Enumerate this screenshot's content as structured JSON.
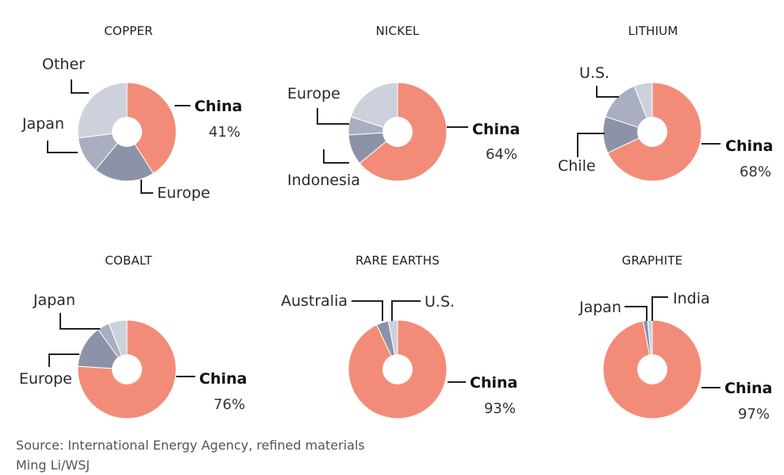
{
  "colors": {
    "china": "#F28C78",
    "shade1": "#8C93A8",
    "shade2": "#A9AFC1",
    "shade3": "#CDD1DC",
    "hole": "#FFFFFF"
  },
  "chart_data": [
    {
      "type": "pie",
      "title": "COPPER",
      "slices": [
        {
          "label": "China",
          "value": 41,
          "value_label": "41%",
          "shade": "china"
        },
        {
          "label": "Europe",
          "value": 20,
          "shade": "shade1"
        },
        {
          "label": "Japan",
          "value": 12,
          "shade": "shade2"
        },
        {
          "label": "Other",
          "value": 27,
          "shade": "shade3"
        }
      ]
    },
    {
      "type": "pie",
      "title": "NICKEL",
      "slices": [
        {
          "label": "China",
          "value": 64,
          "value_label": "64%",
          "shade": "china"
        },
        {
          "label": "Indonesia",
          "value": 10,
          "shade": "shade1"
        },
        {
          "label": "Europe",
          "value": 6,
          "shade": "shade2"
        },
        {
          "label": "",
          "value": 20,
          "shade": "shade3"
        }
      ]
    },
    {
      "type": "pie",
      "title": "LITHIUM",
      "slices": [
        {
          "label": "China",
          "value": 68,
          "value_label": "68%",
          "shade": "china"
        },
        {
          "label": "Chile",
          "value": 12,
          "shade": "shade1"
        },
        {
          "label": "U.S.",
          "value": 14,
          "shade": "shade2"
        },
        {
          "label": "",
          "value": 6,
          "shade": "shade3"
        }
      ]
    },
    {
      "type": "pie",
      "title": "COBALT",
      "slices": [
        {
          "label": "China",
          "value": 76,
          "value_label": "76%",
          "shade": "china"
        },
        {
          "label": "Europe",
          "value": 14,
          "shade": "shade1"
        },
        {
          "label": "Japan",
          "value": 4,
          "shade": "shade2"
        },
        {
          "label": "",
          "value": 6,
          "shade": "shade3"
        }
      ]
    },
    {
      "type": "pie",
      "title": "RARE EARTHS",
      "slices": [
        {
          "label": "China",
          "value": 93,
          "value_label": "93%",
          "shade": "china"
        },
        {
          "label": "Australia",
          "value": 4,
          "shade": "shade1"
        },
        {
          "label": "U.S.",
          "value": 3,
          "shade": "shade3"
        }
      ]
    },
    {
      "type": "pie",
      "title": "GRAPHITE",
      "slices": [
        {
          "label": "China",
          "value": 97,
          "value_label": "97%",
          "shade": "china"
        },
        {
          "label": "Japan",
          "value": 1.5,
          "shade": "shade1"
        },
        {
          "label": "India",
          "value": 1.5,
          "shade": "shade3"
        }
      ]
    }
  ],
  "footer": {
    "source": "Source: International Energy Agency, refined materials",
    "credit": "Ming Li/WSJ"
  }
}
